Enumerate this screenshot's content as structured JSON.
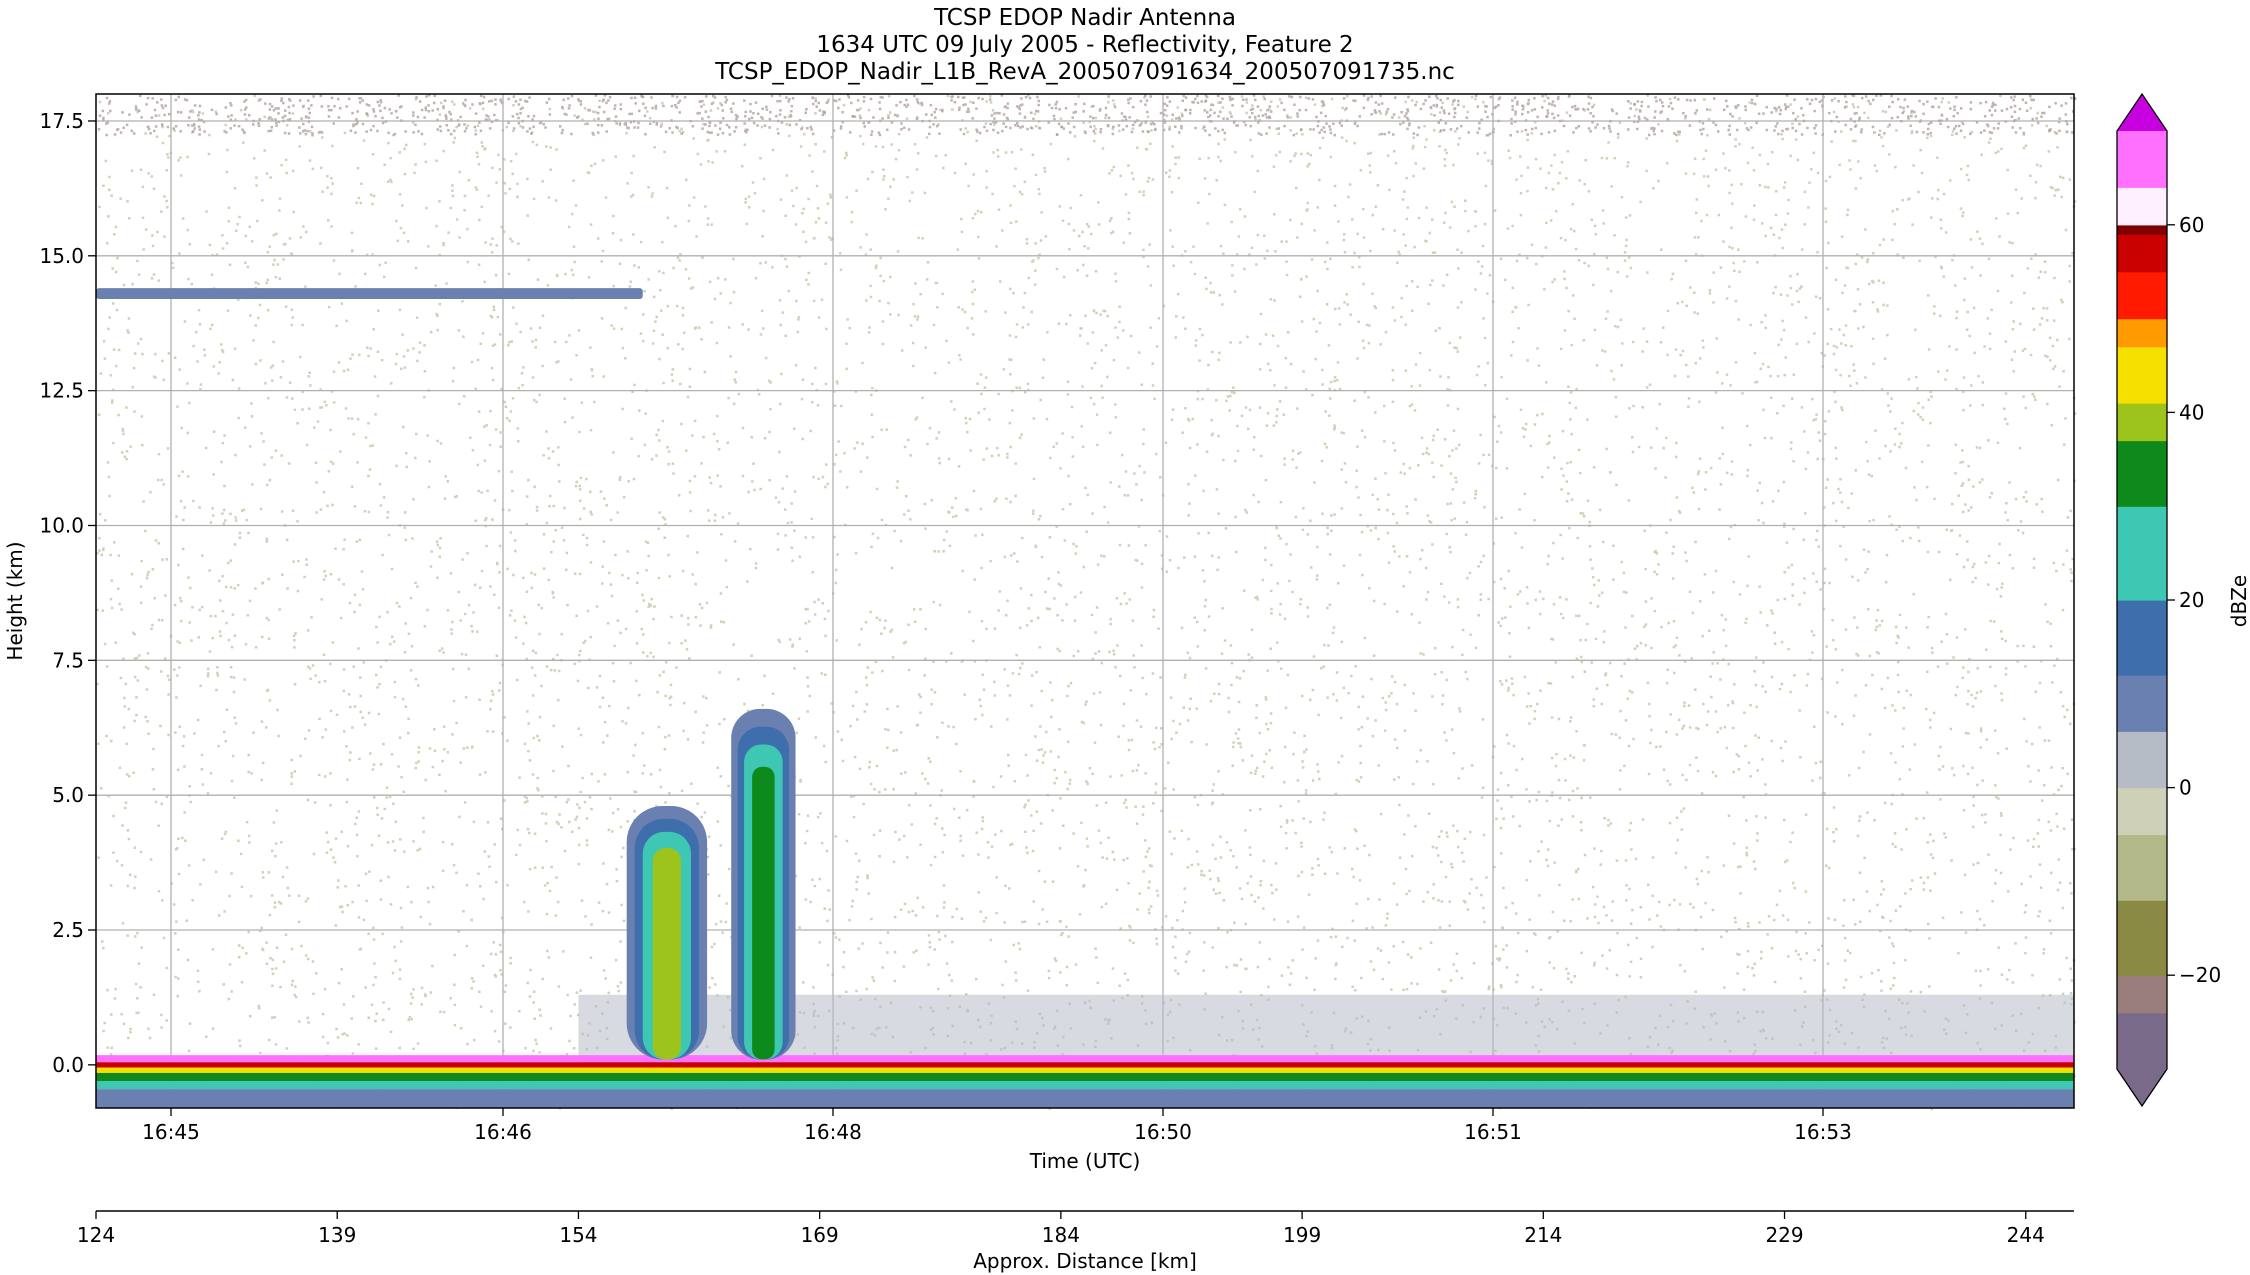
{
  "chart_data": {
    "type": "heatmap",
    "title": [
      "TCSP EDOP Nadir Antenna",
      "1634 UTC 09 July 2005 - Reflectivity, Feature 2",
      "TCSP_EDOP_Nadir_L1B_RevA_200507091634_200507091735.nc"
    ],
    "xlabel": "Time (UTC)",
    "ylabel": "Height (km)",
    "xlabel2": "Approx. Distance [km]",
    "colorbar_label": "dBZe",
    "ylim": [
      -0.8,
      18
    ],
    "yticks": [
      0.0,
      2.5,
      5.0,
      7.5,
      10.0,
      12.5,
      15.0,
      17.5
    ],
    "ytick_labels": [
      "0.0",
      "2.5",
      "5.0",
      "7.5",
      "10.0",
      "12.5",
      "15.0",
      "17.5"
    ],
    "xtick_labels": [
      "16:45",
      "16:46",
      "16:48",
      "16:50",
      "16:51",
      "16:53"
    ],
    "xlim2": [
      124,
      247
    ],
    "xticks2": [
      124,
      139,
      154,
      169,
      184,
      199,
      214,
      229,
      244
    ],
    "xtick2_labels": [
      "124",
      "139",
      "154",
      "169",
      "184",
      "199",
      "214",
      "229",
      "244"
    ],
    "clim": [
      -30,
      70
    ],
    "cticks": [
      -20,
      0,
      20,
      40,
      60
    ],
    "ctick_labels": [
      "−20",
      "0",
      "20",
      "40",
      "60"
    ],
    "grid": true,
    "colormap": [
      {
        "v": -30,
        "c": "#7a6a8a"
      },
      {
        "v": -24,
        "c": "#9a7e7e"
      },
      {
        "v": -20,
        "c": "#8a8a44"
      },
      {
        "v": -12,
        "c": "#b2b888"
      },
      {
        "v": -5,
        "c": "#cfd0b8"
      },
      {
        "v": 0,
        "c": "#b6bcc6"
      },
      {
        "v": 6,
        "c": "#6a80b0"
      },
      {
        "v": 12,
        "c": "#3f6eac"
      },
      {
        "v": 20,
        "c": "#3ec8b4"
      },
      {
        "v": 30,
        "c": "#0e8a1c"
      },
      {
        "v": 37,
        "c": "#9cc41a"
      },
      {
        "v": 41,
        "c": "#f6e000"
      },
      {
        "v": 47,
        "c": "#ff9a00"
      },
      {
        "v": 50,
        "c": "#ff1a00"
      },
      {
        "v": 55,
        "c": "#c80000"
      },
      {
        "v": 59,
        "c": "#800000"
      },
      {
        "v": 60,
        "c": "#fff0ff"
      },
      {
        "v": 64,
        "c": "#ff70ff"
      },
      {
        "v": 70,
        "c": "#c800e0"
      }
    ],
    "features": [
      {
        "name": "convective cell 1",
        "dist_km": [
          157,
          162
        ],
        "top_km": 4.8,
        "max_dbze": 40
      },
      {
        "name": "convective cell 2",
        "dist_km": [
          163.5,
          167.5
        ],
        "top_km": 6.6,
        "max_dbze": 30
      },
      {
        "name": "thin layer",
        "dist_km": [
          124,
          158
        ],
        "height_km": 14.3,
        "max_dbze": 10
      },
      {
        "name": "surface return",
        "dist_km": [
          124,
          247
        ],
        "height_km": 0.0,
        "max_dbze": 65
      }
    ]
  }
}
